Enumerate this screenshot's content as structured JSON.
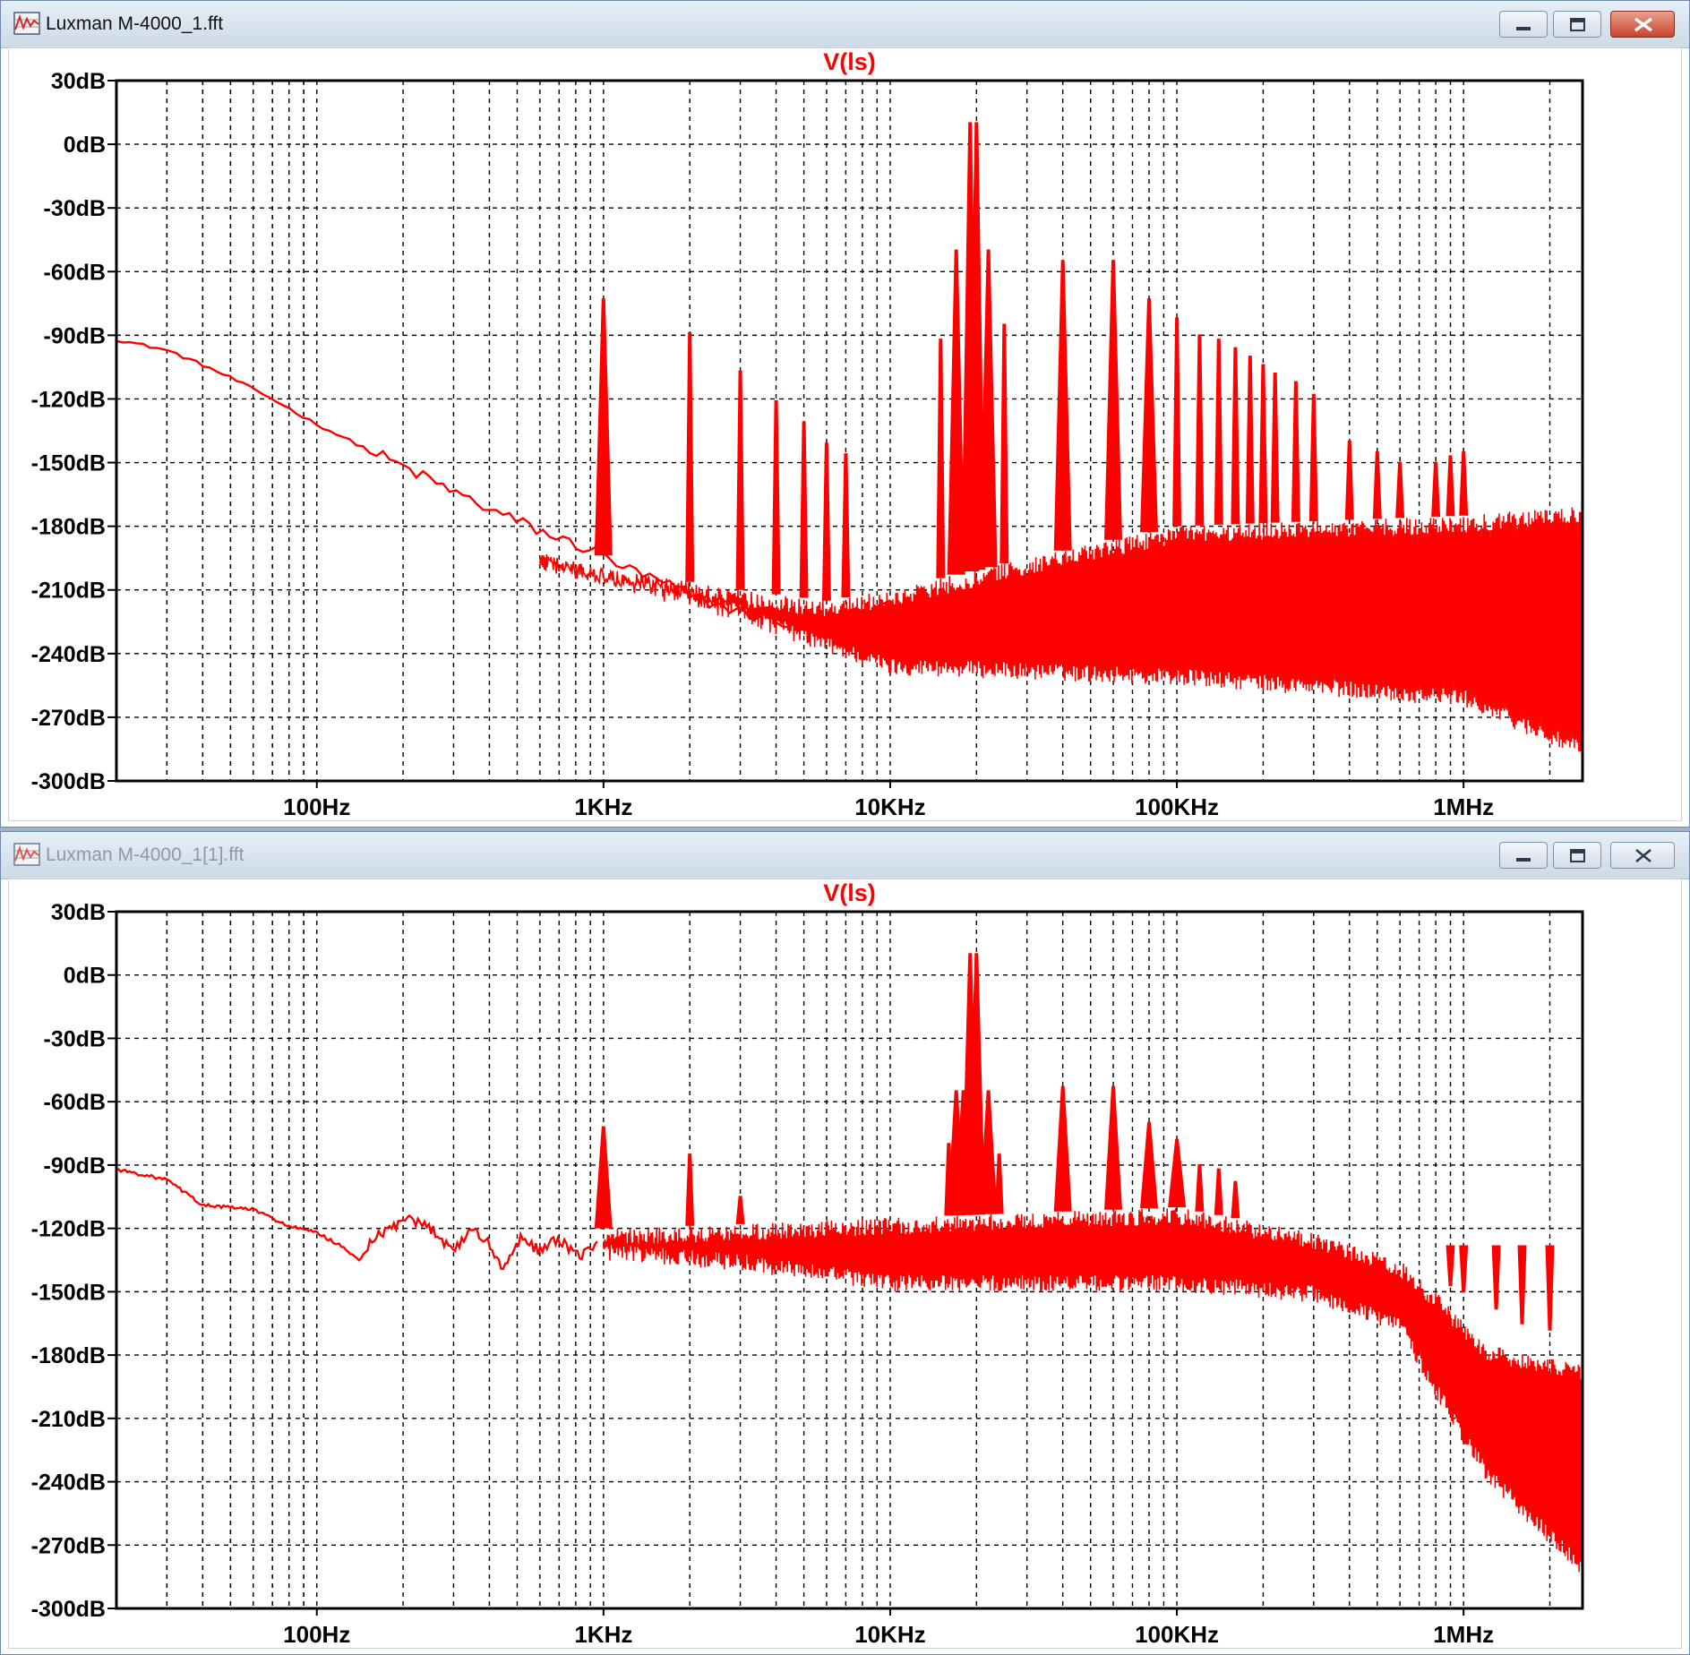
{
  "windows": [
    {
      "title": "Luxman M-4000_1.fft",
      "active": true,
      "buttons": {
        "minimize": "minimize-icon",
        "maximize": "maximize-icon",
        "close": "close-icon"
      }
    },
    {
      "title": "Luxman M-4000_1[1].fft",
      "active": false,
      "buttons": {
        "minimize": "minimize-icon",
        "maximize": "maximize-icon",
        "close": "close-icon"
      }
    }
  ],
  "colors": {
    "trace": "#ff0000",
    "grid": "#000000",
    "title_text": "#ff0000",
    "axis_text": "#000000",
    "background": "#ffffff"
  },
  "chart_data": [
    {
      "type": "line",
      "title": "V(ls)",
      "xscale": "log",
      "xlim": [
        20,
        2600000
      ],
      "ylim": [
        -300,
        30
      ],
      "grid": true,
      "x_ticks": [
        {
          "value": 100,
          "label": "100Hz"
        },
        {
          "value": 1000,
          "label": "1KHz"
        },
        {
          "value": 10000,
          "label": "10KHz"
        },
        {
          "value": 100000,
          "label": "100KHz"
        },
        {
          "value": 1000000,
          "label": "1MHz"
        }
      ],
      "y_ticks": [
        {
          "value": 30,
          "label": "30dB"
        },
        {
          "value": 0,
          "label": "0dB"
        },
        {
          "value": -30,
          "label": "-30dB"
        },
        {
          "value": -60,
          "label": "-60dB"
        },
        {
          "value": -90,
          "label": "-90dB"
        },
        {
          "value": -120,
          "label": "-120dB"
        },
        {
          "value": -150,
          "label": "-150dB"
        },
        {
          "value": -180,
          "label": "-180dB"
        },
        {
          "value": -210,
          "label": "-210dB"
        },
        {
          "value": -240,
          "label": "-240dB"
        },
        {
          "value": -270,
          "label": "-270dB"
        },
        {
          "value": -300,
          "label": "-300dB"
        }
      ],
      "series": [
        {
          "color": "#ff0000",
          "line": [
            [
              20,
              -92
            ],
            [
              30,
              -97
            ],
            [
              40,
              -104
            ],
            [
              50,
              -110
            ],
            [
              70,
              -120
            ],
            [
              100,
              -132
            ],
            [
              200,
              -152
            ],
            [
              400,
              -172
            ],
            [
              700,
              -186
            ],
            [
              950,
              -192
            ],
            [
              1200,
              -200
            ],
            [
              1700,
              -208
            ],
            [
              2100,
              -214
            ],
            [
              3000,
              -220
            ],
            [
              5000,
              -228
            ],
            [
              8000,
              -220
            ],
            [
              10000,
              -218
            ],
            [
              30000,
              -212
            ],
            [
              100000,
              -210
            ],
            [
              2600000,
              -212
            ]
          ],
          "peaks": [
            [
              1000,
              -73
            ],
            [
              2000,
              -89
            ],
            [
              3000,
              -107
            ],
            [
              4000,
              -121
            ],
            [
              5000,
              -131
            ],
            [
              6000,
              -141
            ],
            [
              7000,
              -146
            ],
            [
              19000,
              10
            ],
            [
              20000,
              10
            ],
            [
              17000,
              -50
            ],
            [
              22000,
              -50
            ],
            [
              15000,
              -92
            ],
            [
              25000,
              -85
            ],
            [
              40000,
              -55
            ],
            [
              60000,
              -55
            ],
            [
              80000,
              -73
            ],
            [
              100000,
              -82
            ],
            [
              120000,
              -90
            ],
            [
              140000,
              -92
            ],
            [
              160000,
              -96
            ],
            [
              180000,
              -100
            ],
            [
              200000,
              -104
            ],
            [
              220000,
              -108
            ],
            [
              260000,
              -112
            ],
            [
              300000,
              -118
            ],
            [
              400000,
              -140
            ],
            [
              500000,
              -145
            ],
            [
              600000,
              -150
            ],
            [
              800000,
              -150
            ],
            [
              900000,
              -147
            ],
            [
              1000000,
              -145
            ]
          ],
          "noise_floor": [
            [
              600,
              -200
            ],
            [
              3000,
              -225
            ],
            [
              6000,
              -240
            ],
            [
              10000,
              -250
            ],
            [
              100000,
              -255
            ],
            [
              1000000,
              -265
            ],
            [
              2600000,
              -290
            ]
          ],
          "noise_top": [
            [
              600,
              -195
            ],
            [
              3000,
              -210
            ],
            [
              6000,
              -215
            ],
            [
              10000,
              -210
            ],
            [
              30000,
              -195
            ],
            [
              100000,
              -180
            ],
            [
              1000000,
              -175
            ],
            [
              2600000,
              -170
            ]
          ]
        }
      ]
    },
    {
      "type": "line",
      "title": "V(ls)",
      "xscale": "log",
      "xlim": [
        20,
        2600000
      ],
      "ylim": [
        -300,
        30
      ],
      "grid": true,
      "x_ticks": [
        {
          "value": 100,
          "label": "100Hz"
        },
        {
          "value": 1000,
          "label": "1KHz"
        },
        {
          "value": 10000,
          "label": "10KHz"
        },
        {
          "value": 100000,
          "label": "100KHz"
        },
        {
          "value": 1000000,
          "label": "1MHz"
        }
      ],
      "y_ticks": [
        {
          "value": 30,
          "label": "30dB"
        },
        {
          "value": 0,
          "label": "0dB"
        },
        {
          "value": -30,
          "label": "-30dB"
        },
        {
          "value": -60,
          "label": "-60dB"
        },
        {
          "value": -90,
          "label": "-90dB"
        },
        {
          "value": -120,
          "label": "-120dB"
        },
        {
          "value": -150,
          "label": "-150dB"
        },
        {
          "value": -180,
          "label": "-180dB"
        },
        {
          "value": -210,
          "label": "-210dB"
        },
        {
          "value": -240,
          "label": "-240dB"
        },
        {
          "value": -270,
          "label": "-270dB"
        },
        {
          "value": -300,
          "label": "-300dB"
        }
      ],
      "series": [
        {
          "color": "#ff0000",
          "line": [
            [
              20,
              -92
            ],
            [
              30,
              -97
            ],
            [
              40,
              -109
            ],
            [
              60,
              -111
            ],
            [
              80,
              -119
            ],
            [
              100,
              -122
            ],
            [
              120,
              -128
            ],
            [
              140,
              -135
            ],
            [
              160,
              -125
            ],
            [
              200,
              -116
            ],
            [
              250,
              -120
            ],
            [
              300,
              -130
            ],
            [
              350,
              -120
            ],
            [
              400,
              -128
            ],
            [
              450,
              -140
            ],
            [
              500,
              -125
            ],
            [
              600,
              -130
            ],
            [
              700,
              -126
            ],
            [
              800,
              -133
            ],
            [
              950,
              -128
            ]
          ],
          "peaks": [
            [
              1000,
              -72
            ],
            [
              2000,
              -85
            ],
            [
              3000,
              -105
            ],
            [
              17000,
              -55
            ],
            [
              18000,
              -55
            ],
            [
              19000,
              10
            ],
            [
              20000,
              10
            ],
            [
              22000,
              -55
            ],
            [
              16000,
              -80
            ],
            [
              24000,
              -85
            ],
            [
              40000,
              -53
            ],
            [
              60000,
              -53
            ],
            [
              80000,
              -70
            ],
            [
              100000,
              -78
            ],
            [
              120000,
              -90
            ],
            [
              140000,
              -92
            ],
            [
              160000,
              -98
            ],
            [
              900000,
              -147
            ],
            [
              1000000,
              -150
            ],
            [
              1300000,
              -158
            ],
            [
              1600000,
              -165
            ],
            [
              2000000,
              -168
            ]
          ],
          "noise_floor": [
            [
              1000,
              -135
            ],
            [
              3000,
              -140
            ],
            [
              10000,
              -150
            ],
            [
              100000,
              -150
            ],
            [
              300000,
              -155
            ],
            [
              600000,
              -170
            ],
            [
              800000,
              -200
            ],
            [
              1200000,
              -240
            ],
            [
              2600000,
              -285
            ]
          ],
          "noise_top": [
            [
              1000,
              -120
            ],
            [
              3000,
              -118
            ],
            [
              10000,
              -115
            ],
            [
              100000,
              -110
            ],
            [
              300000,
              -122
            ],
            [
              600000,
              -135
            ],
            [
              800000,
              -150
            ],
            [
              1200000,
              -175
            ],
            [
              2600000,
              -185
            ]
          ]
        }
      ]
    }
  ]
}
